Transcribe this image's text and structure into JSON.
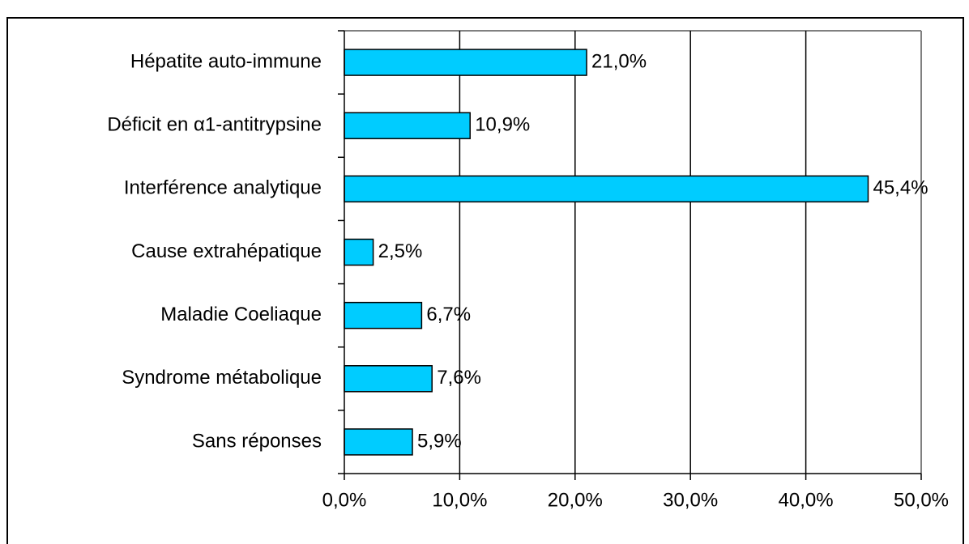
{
  "chart_data": {
    "type": "bar",
    "orientation": "horizontal",
    "categories": [
      "Hépatite auto-immune",
      "Déficit en α1-antitrypsine",
      "Interférence analytique",
      "Cause extrahépatique",
      "Maladie Coeliaque",
      "Syndrome métabolique",
      "Sans réponses"
    ],
    "values": [
      21.0,
      10.9,
      45.4,
      2.5,
      6.7,
      7.6,
      5.9
    ],
    "value_labels": [
      "21,0%",
      "10,9%",
      "45,4%",
      "2,5%",
      "6,7%",
      "7,6%",
      "5,9%"
    ],
    "color": "#00ccff",
    "xlim": [
      0,
      50
    ],
    "xticks": [
      {
        "value": 0,
        "label": "0,0%"
      },
      {
        "value": 10,
        "label": "10,0%"
      },
      {
        "value": 20,
        "label": "20,0%"
      },
      {
        "value": 30,
        "label": "30,0%"
      },
      {
        "value": 40,
        "label": "40,0%"
      },
      {
        "value": 50,
        "label": "50,0%"
      }
    ],
    "grid": true
  }
}
